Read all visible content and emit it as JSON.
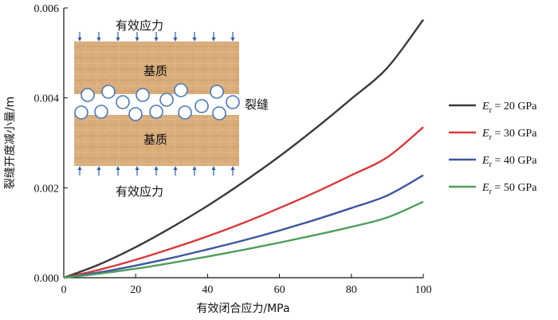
{
  "chart_data": {
    "type": "line",
    "xlabel": "有效闭合应力/MPa",
    "ylabel": "裂缝开度减小量/m",
    "xlim": [
      0,
      100
    ],
    "ylim": [
      0,
      0.006
    ],
    "x_ticks": [
      "0",
      "20",
      "40",
      "60",
      "80",
      "100"
    ],
    "y_ticks": [
      "0.000",
      "0.002",
      "0.004",
      "0.006"
    ],
    "legend_position": "right",
    "x": [
      0,
      10,
      20,
      30,
      40,
      50,
      60,
      70,
      80,
      90,
      100
    ],
    "series": [
      {
        "name": "20 GPa",
        "symbol": "E",
        "subscript": "r",
        "color": "#3d3a3a",
        "values": [
          0,
          0.0003,
          0.00068,
          0.00112,
          0.0016,
          0.00213,
          0.0027,
          0.00332,
          0.00398,
          0.00467,
          0.00574
        ]
      },
      {
        "name": "30 GPa",
        "symbol": "E",
        "subscript": "r",
        "color": "#d93a3a",
        "values": [
          0,
          0.00018,
          0.0004,
          0.00065,
          0.00092,
          0.00122,
          0.00155,
          0.0019,
          0.00228,
          0.00268,
          0.00335
        ]
      },
      {
        "name": "40 GPa",
        "symbol": "E",
        "subscript": "r",
        "color": "#3d55a0",
        "values": [
          0,
          0.00012,
          0.00027,
          0.00044,
          0.00063,
          0.00083,
          0.00105,
          0.00129,
          0.00155,
          0.00183,
          0.00228
        ]
      },
      {
        "name": "50 GPa",
        "symbol": "E",
        "subscript": "r",
        "color": "#4da05a",
        "values": [
          0,
          9e-05,
          0.0002,
          0.00033,
          0.00047,
          0.00062,
          0.00078,
          0.00095,
          0.00113,
          0.00134,
          0.00169
        ]
      }
    ]
  },
  "inset": {
    "stress_top": "有效应力",
    "stress_bottom": "有效应力",
    "matrix_top": "基质",
    "matrix_bottom": "基质",
    "fracture": "裂缝"
  }
}
